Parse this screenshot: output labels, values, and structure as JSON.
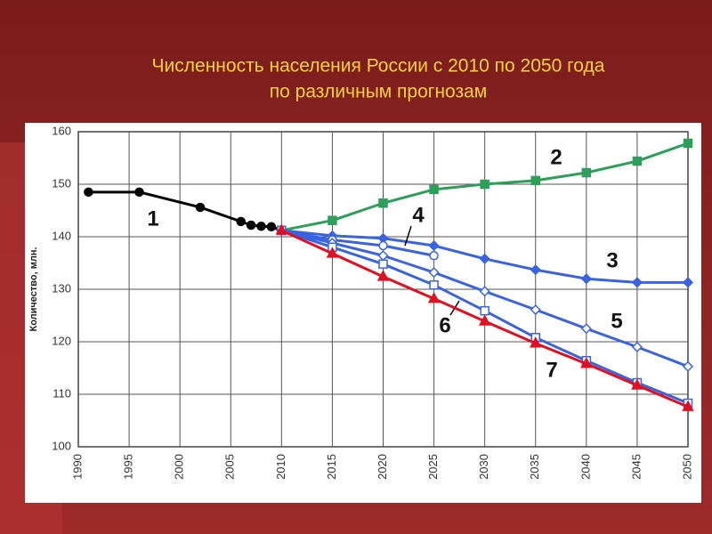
{
  "chart_data": {
    "type": "line",
    "title": [
      "Численность населения России с 2010 по 2050 года",
      "по различным прогнозам"
    ],
    "y_label": "Количество, млн.",
    "xlim": [
      1990,
      2050
    ],
    "xticks": [
      1990,
      1995,
      2000,
      2005,
      2010,
      2015,
      2020,
      2025,
      2030,
      2035,
      2040,
      2045,
      2050
    ],
    "ylim": [
      100,
      160
    ],
    "yticks": [
      100,
      110,
      120,
      130,
      140,
      150,
      160
    ],
    "grid": true,
    "series": [
      {
        "name": "1",
        "color": "#000000",
        "marker": "circle",
        "x": [
          1991,
          1996,
          2002,
          2006,
          2007,
          2008,
          2009,
          2010
        ],
        "values": [
          148.5,
          148.5,
          145.6,
          142.9,
          142.2,
          142,
          141.9,
          141.2
        ]
      },
      {
        "name": "2",
        "color": "#2e9e5b",
        "marker": "square",
        "x": [
          2010,
          2015,
          2020,
          2025,
          2030,
          2035,
          2040,
          2045,
          2050
        ],
        "values": [
          141.2,
          143.1,
          146.4,
          149,
          150,
          150.7,
          152.2,
          154.4,
          157.8
        ]
      },
      {
        "name": "3",
        "color": "#3a63e0",
        "marker": "diamond",
        "x": [
          2010,
          2015,
          2020,
          2025,
          2030,
          2035,
          2040,
          2045,
          2050
        ],
        "values": [
          141.2,
          140.2,
          139.7,
          138.3,
          135.8,
          133.7,
          132,
          131.3,
          131.3
        ]
      },
      {
        "name": "4",
        "color": "#3a63e0",
        "marker": "circle-open",
        "x": [
          2010,
          2015,
          2020,
          2025
        ],
        "values": [
          141.2,
          139.4,
          138.3,
          136.4
        ]
      },
      {
        "name": "5",
        "color": "#3a63e0",
        "marker": "diamond-open",
        "x": [
          2010,
          2015,
          2020,
          2025,
          2030,
          2035,
          2040,
          2045,
          2050
        ],
        "values": [
          141.2,
          138.8,
          136.4,
          133.2,
          129.6,
          126.1,
          122.5,
          119,
          115.3
        ]
      },
      {
        "name": "6",
        "color": "#3a63e0",
        "marker": "square-open",
        "x": [
          2010,
          2015,
          2020,
          2025,
          2030,
          2035,
          2040,
          2045,
          2050
        ],
        "values": [
          141.2,
          138,
          134.8,
          130.8,
          125.9,
          120.8,
          116.4,
          112.2,
          108.3
        ]
      },
      {
        "name": "7",
        "color": "#e01020",
        "marker": "triangle",
        "x": [
          2010,
          2015,
          2020,
          2025,
          2030,
          2035,
          2040,
          2045,
          2050
        ],
        "values": [
          141.2,
          136.8,
          132.4,
          128.2,
          123.9,
          119.7,
          115.8,
          111.7,
          107.6
        ]
      }
    ]
  }
}
